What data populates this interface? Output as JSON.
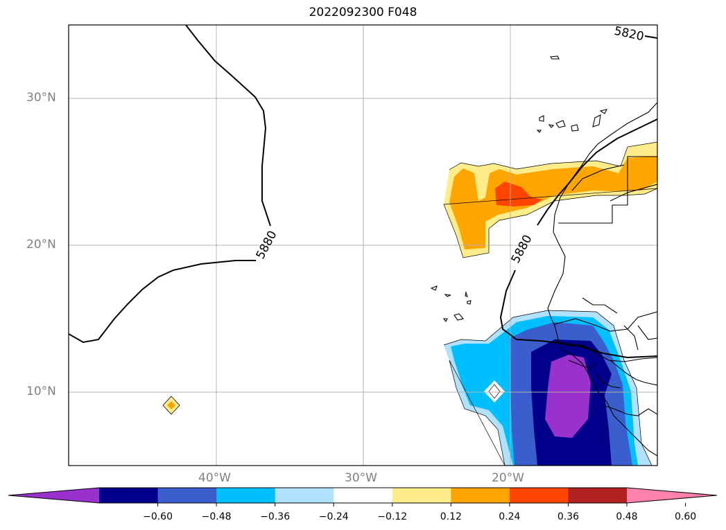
{
  "title": "2022092300 F048",
  "map": {
    "extent": {
      "lon": [
        -50,
        -10
      ],
      "lat": [
        5,
        35
      ]
    },
    "lat_ticks": [
      {
        "value": 30,
        "label": "30°N"
      },
      {
        "value": 20,
        "label": "20°N"
      },
      {
        "value": 10,
        "label": "10°N"
      }
    ],
    "lon_ticks": [
      {
        "value": -40,
        "label": "40°W"
      },
      {
        "value": -30,
        "label": "30°W"
      },
      {
        "value": -20,
        "label": "20°W"
      }
    ],
    "contour_labels": [
      "5880",
      "5880",
      "5820"
    ],
    "grid": true
  },
  "colorbar": {
    "extend": "both",
    "colors": [
      "#9932cc",
      "#00008b",
      "#3a5fcd",
      "#00bfff",
      "#b0e2ff",
      "#ffffff",
      "#ffec8b",
      "#ffa500",
      "#ff4500",
      "#b22222",
      "#ff82ab"
    ],
    "tick_labels": [
      "−0.60",
      "−0.48",
      "−0.36",
      "−0.24",
      "−0.12",
      "0.12",
      "0.24",
      "0.36",
      "0.48",
      "0.60"
    ]
  }
}
